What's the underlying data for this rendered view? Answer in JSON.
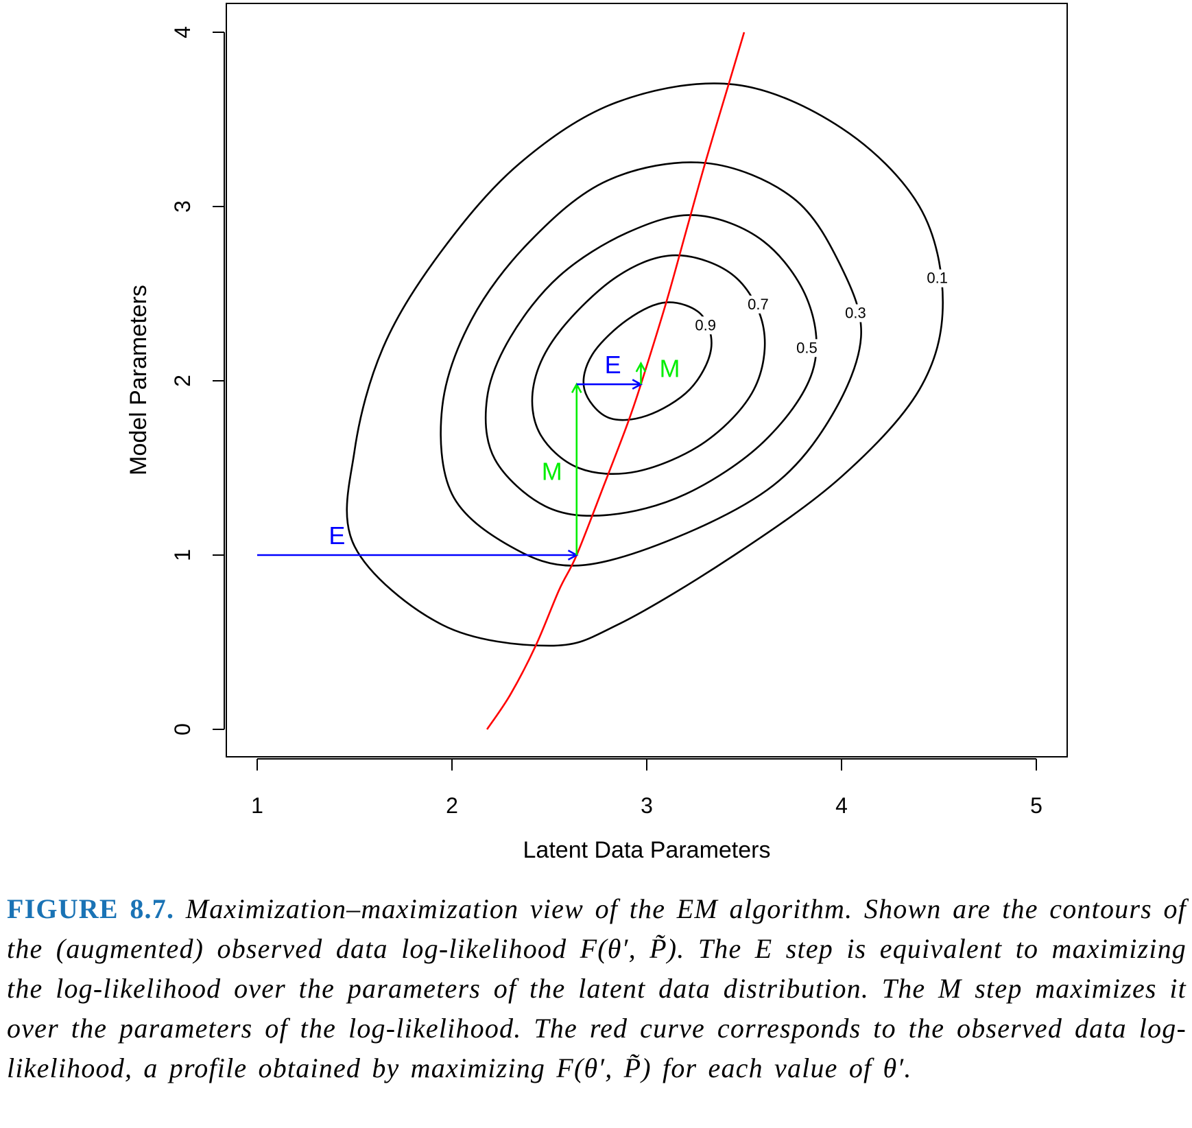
{
  "chart_data": {
    "type": "contour",
    "xlabel": "Latent Data Parameters",
    "ylabel": "Model Parameters",
    "xlim": [
      1,
      5
    ],
    "ylim": [
      0,
      4
    ],
    "x_ticks": [
      "1",
      "2",
      "3",
      "4",
      "5"
    ],
    "y_ticks": [
      "0",
      "1",
      "2",
      "3",
      "4"
    ],
    "contours": [
      {
        "level": "0.1",
        "points": [
          [
            1.95,
            0.6
          ],
          [
            1.5,
            1.05
          ],
          [
            1.5,
            1.6
          ],
          [
            1.65,
            2.2
          ],
          [
            1.95,
            2.75
          ],
          [
            2.35,
            3.25
          ],
          [
            2.85,
            3.6
          ],
          [
            3.45,
            3.7
          ],
          [
            4.0,
            3.45
          ],
          [
            4.4,
            3.0
          ],
          [
            4.52,
            2.45
          ],
          [
            4.4,
            1.95
          ],
          [
            4.0,
            1.45
          ],
          [
            3.45,
            1.0
          ],
          [
            2.85,
            0.6
          ],
          [
            2.5,
            0.48
          ]
        ]
      },
      {
        "level": "0.3",
        "points": [
          [
            2.3,
            1.05
          ],
          [
            2.0,
            1.35
          ],
          [
            1.95,
            1.85
          ],
          [
            2.1,
            2.35
          ],
          [
            2.4,
            2.8
          ],
          [
            2.8,
            3.15
          ],
          [
            3.3,
            3.25
          ],
          [
            3.75,
            3.05
          ],
          [
            4.0,
            2.65
          ],
          [
            4.1,
            2.25
          ],
          [
            3.95,
            1.8
          ],
          [
            3.65,
            1.4
          ],
          [
            3.15,
            1.1
          ],
          [
            2.65,
            0.94
          ]
        ]
      },
      {
        "level": "0.5",
        "points": [
          [
            2.48,
            1.28
          ],
          [
            2.22,
            1.55
          ],
          [
            2.18,
            1.9
          ],
          [
            2.3,
            2.25
          ],
          [
            2.55,
            2.6
          ],
          [
            2.9,
            2.85
          ],
          [
            3.25,
            2.95
          ],
          [
            3.6,
            2.8
          ],
          [
            3.83,
            2.45
          ],
          [
            3.85,
            2.05
          ],
          [
            3.6,
            1.65
          ],
          [
            3.2,
            1.35
          ],
          [
            2.8,
            1.23
          ]
        ]
      },
      {
        "level": "0.7",
        "points": [
          [
            2.65,
            1.5
          ],
          [
            2.45,
            1.7
          ],
          [
            2.42,
            1.98
          ],
          [
            2.55,
            2.28
          ],
          [
            2.85,
            2.6
          ],
          [
            3.15,
            2.72
          ],
          [
            3.45,
            2.6
          ],
          [
            3.6,
            2.3
          ],
          [
            3.55,
            1.95
          ],
          [
            3.3,
            1.65
          ],
          [
            2.95,
            1.48
          ]
        ]
      },
      {
        "level": "0.9",
        "points": [
          [
            2.8,
            1.79
          ],
          [
            2.68,
            1.95
          ],
          [
            2.72,
            2.15
          ],
          [
            2.9,
            2.35
          ],
          [
            3.1,
            2.45
          ],
          [
            3.28,
            2.38
          ],
          [
            3.33,
            2.18
          ],
          [
            3.22,
            1.95
          ],
          [
            3.0,
            1.8
          ]
        ]
      }
    ],
    "profile_curve": {
      "color": "#ff0000",
      "points": [
        [
          2.18,
          0
        ],
        [
          2.3,
          0.2
        ],
        [
          2.43,
          0.48
        ],
        [
          2.55,
          0.8
        ],
        [
          2.64,
          1.0
        ],
        [
          2.78,
          1.4
        ],
        [
          2.9,
          1.75
        ],
        [
          2.97,
          1.98
        ],
        [
          3.1,
          2.45
        ],
        [
          3.2,
          2.85
        ],
        [
          3.3,
          3.25
        ],
        [
          3.42,
          3.7
        ],
        [
          3.5,
          4.0
        ]
      ]
    },
    "steps": [
      {
        "type": "E",
        "color": "#0000ff",
        "from": [
          1,
          1
        ],
        "to": [
          2.64,
          1
        ],
        "label": "E"
      },
      {
        "type": "M",
        "color": "#00ee00",
        "from": [
          2.64,
          1
        ],
        "to": [
          2.64,
          1.98
        ],
        "label": "M"
      },
      {
        "type": "E",
        "color": "#0000ff",
        "from": [
          2.64,
          1.98
        ],
        "to": [
          2.97,
          1.98
        ],
        "label": "E"
      },
      {
        "type": "M",
        "color": "#00ee00",
        "from": [
          2.97,
          1.98
        ],
        "to": [
          2.97,
          2.1
        ],
        "label": "M"
      }
    ]
  },
  "caption": {
    "label": "FIGURE 8.7.",
    "text": "Maximization–maximization view of the EM algorithm. Shown are the contours of the (augmented) observed data log-likelihood F(θ′, P̃). The E step is equivalent to maximizing the log-likelihood over the parameters of the latent data distribution. The M step maximizes it over the parameters of the log-likelihood. The red curve corresponds to the observed data log-likelihood, a profile obtained by maximizing F(θ′, P̃) for each value of θ′."
  }
}
